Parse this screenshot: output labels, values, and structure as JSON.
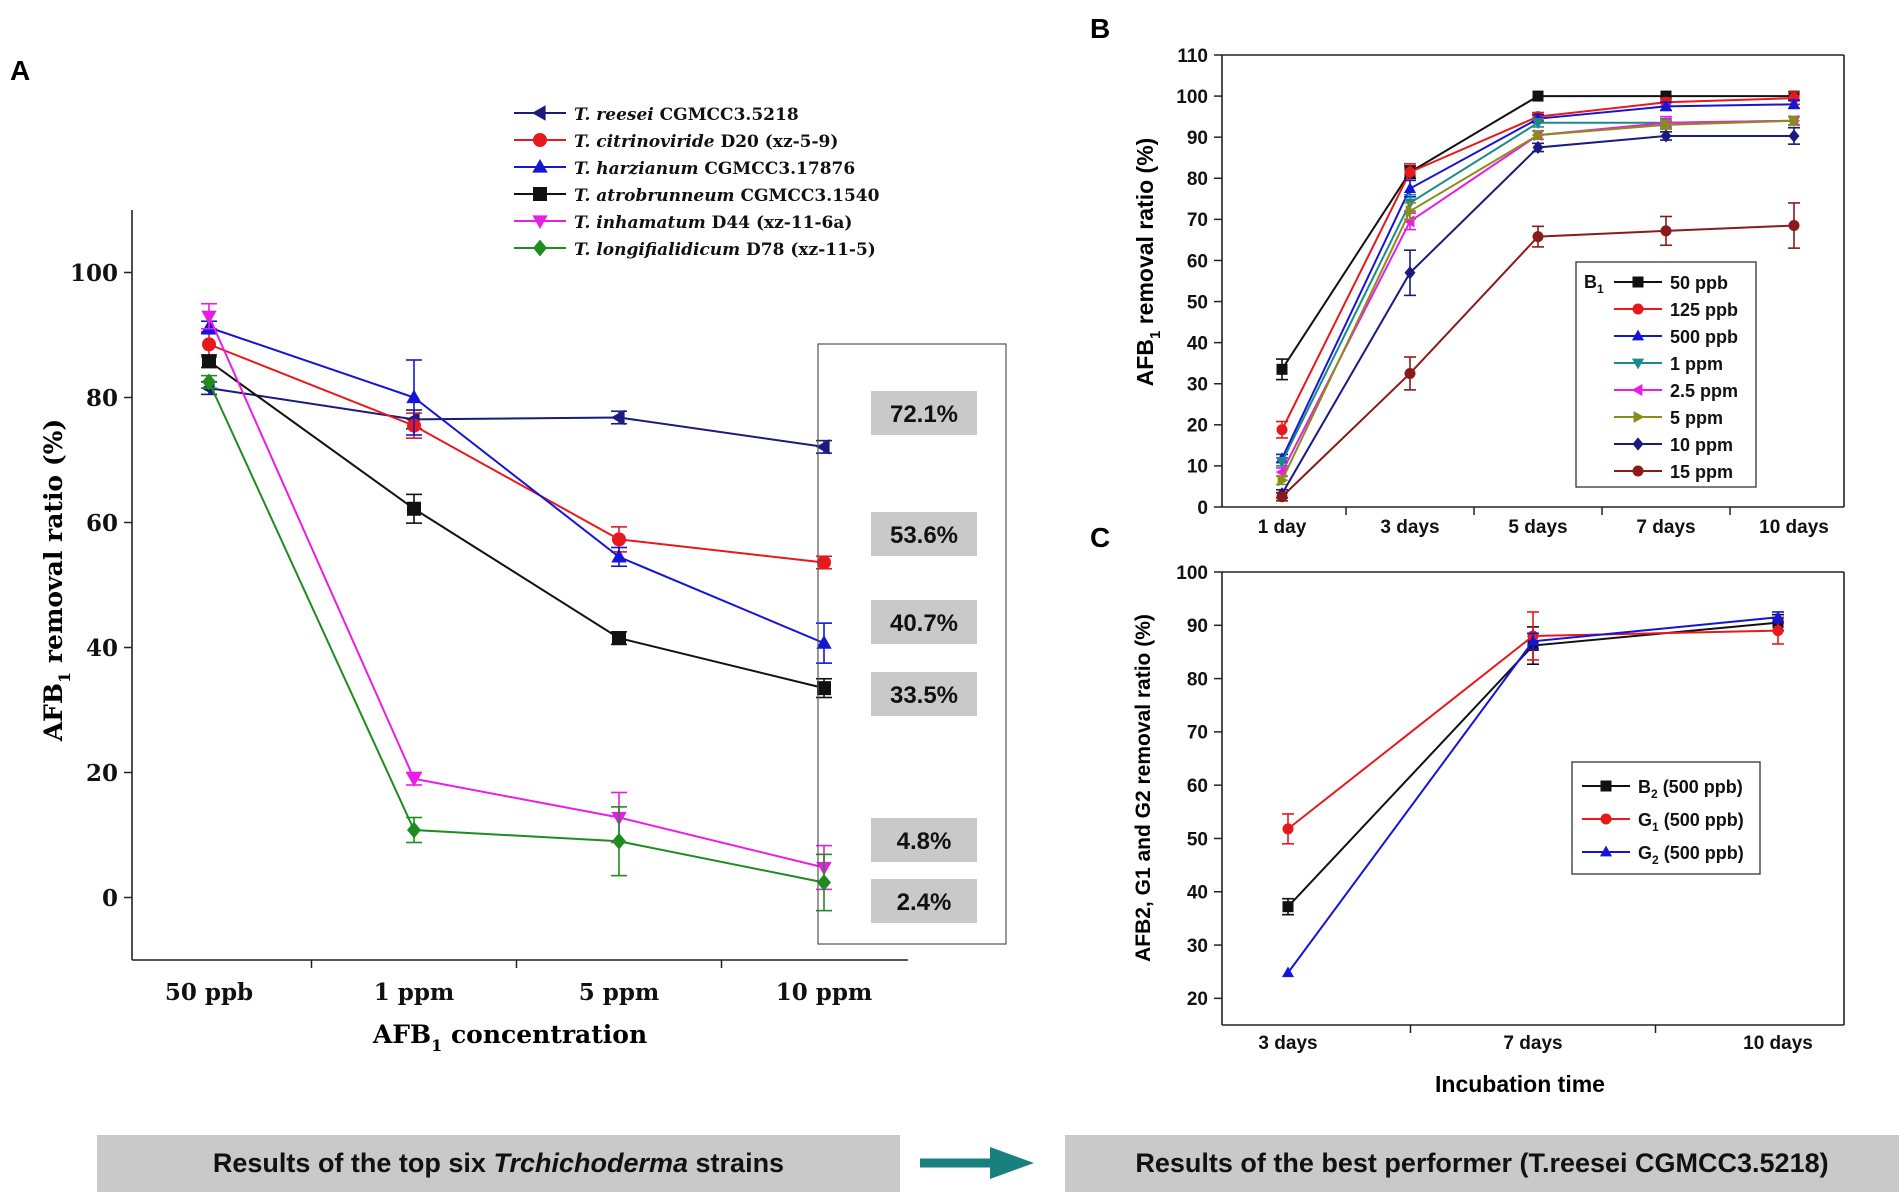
{
  "chart_data": [
    {
      "panel": "A",
      "type": "line",
      "categories": [
        "50 ppb",
        "1 ppm",
        "5 ppm",
        "10 ppm"
      ],
      "xlabel_main": "AFB",
      "xlabel_sub": "1",
      "xlabel_rest": " concentration",
      "ylabel_main": "AFB",
      "ylabel_sub": "1",
      "ylabel_rest": " removal ratio (%)",
      "ylim": [
        -10,
        110
      ],
      "yticks": [
        0,
        20,
        40,
        60,
        80,
        100
      ],
      "series": [
        {
          "italic": "T. reesei",
          "rest": " CGMCC3.5218",
          "color": "#1a1a80",
          "marker": "triangle-left",
          "values": [
            81.5,
            76.5,
            76.8,
            72.1
          ],
          "errors": [
            1.0,
            1.5,
            1.0,
            1.0
          ]
        },
        {
          "italic": "T. citrinoviride",
          "rest": " D20 (xz-5-9)",
          "color": "#e8191c",
          "marker": "circle",
          "values": [
            88.5,
            75.5,
            57.3,
            53.6
          ],
          "errors": [
            2.0,
            2.0,
            2.0,
            1.0
          ]
        },
        {
          "italic": "T. harzianum",
          "rest": " CGMCC3.17876",
          "color": "#1515d6",
          "marker": "triangle-up",
          "values": [
            91.2,
            80.0,
            54.5,
            40.7
          ],
          "errors": [
            1.0,
            6.0,
            1.5,
            3.2
          ]
        },
        {
          "italic": "T. atrobrunneum",
          "rest": " CGMCC3.1540",
          "color": "#111111",
          "marker": "square",
          "values": [
            85.8,
            62.2,
            41.5,
            33.5
          ],
          "errors": [
            1.0,
            2.3,
            1.0,
            1.5
          ]
        },
        {
          "italic": "T. inhamatum",
          "rest": " D44 (xz-11-6a)",
          "color": "#e91ee6",
          "marker": "triangle-down",
          "values": [
            93.0,
            19.0,
            12.8,
            4.8
          ],
          "errors": [
            2.0,
            1.0,
            4.0,
            3.5
          ]
        },
        {
          "italic": "T. longifialidicum",
          "rest": " D78 (xz-11-5)",
          "color": "#1f8c1f",
          "marker": "diamond",
          "values": [
            82.5,
            10.8,
            9.0,
            2.4
          ],
          "errors": [
            1.0,
            2.0,
            5.5,
            4.5
          ]
        }
      ],
      "annotations": [
        "72.1%",
        "53.6%",
        "40.7%",
        "33.5%",
        "4.8%",
        "2.4%"
      ]
    },
    {
      "panel": "B",
      "type": "line",
      "categories": [
        "1 day",
        "3 days",
        "5 days",
        "7 days",
        "10 days"
      ],
      "ylabel_main": "AFB",
      "ylabel_sub": "1",
      "ylabel_rest": " removal ratio (%)",
      "ylim": [
        0,
        110
      ],
      "yticks": [
        0,
        10,
        20,
        30,
        40,
        50,
        60,
        70,
        80,
        90,
        100,
        110
      ],
      "legend_title_main": "B",
      "legend_title_sub": "1",
      "series": [
        {
          "name": "50 ppb",
          "color": "#111111",
          "marker": "square",
          "values": [
            33.5,
            81.5,
            100.0,
            100.0,
            100.0
          ],
          "errors": [
            2.5,
            1.5,
            0.5,
            0.5,
            0.5
          ]
        },
        {
          "name": "125 ppb",
          "color": "#e8191c",
          "marker": "circle",
          "values": [
            18.8,
            81.5,
            95.0,
            98.5,
            99.5
          ],
          "errors": [
            2.0,
            2.0,
            1.0,
            1.0,
            1.5
          ]
        },
        {
          "name": "500 ppb",
          "color": "#1515d6",
          "marker": "triangle-up",
          "values": [
            11.8,
            77.5,
            94.5,
            97.5,
            98.0
          ],
          "errors": [
            1.0,
            2.0,
            1.0,
            1.0,
            1.0
          ]
        },
        {
          "name": "1 ppm",
          "color": "#1a8a8a",
          "marker": "triangle-down",
          "values": [
            11.0,
            74.0,
            93.5,
            93.5,
            94.0
          ],
          "errors": [
            1.0,
            2.0,
            1.0,
            1.0,
            1.0
          ]
        },
        {
          "name": "2.5 ppm",
          "color": "#e91ee6",
          "marker": "triangle-left",
          "values": [
            8.5,
            69.5,
            90.5,
            93.5,
            94.0
          ],
          "errors": [
            1.0,
            2.0,
            1.0,
            1.5,
            1.0
          ]
        },
        {
          "name": "5 ppm",
          "color": "#8c8c1a",
          "marker": "triangle-right",
          "values": [
            6.5,
            72.0,
            90.5,
            93.0,
            94.0
          ],
          "errors": [
            1.0,
            2.0,
            1.0,
            1.0,
            1.0
          ]
        },
        {
          "name": "10 ppm",
          "color": "#1a1a80",
          "marker": "diamond",
          "values": [
            3.2,
            57.0,
            87.5,
            90.3,
            90.3
          ],
          "errors": [
            1.0,
            5.5,
            1.0,
            1.0,
            2.0
          ]
        },
        {
          "name": "15 ppm",
          "color": "#8b1a1a",
          "marker": "circle",
          "values": [
            2.5,
            32.5,
            65.8,
            67.2,
            68.5
          ],
          "errors": [
            1.0,
            4.0,
            2.5,
            3.5,
            5.5
          ]
        }
      ]
    },
    {
      "panel": "C",
      "type": "line",
      "categories": [
        "3 days",
        "7 days",
        "10 days"
      ],
      "xlabel": "Incubation time",
      "ylabel": "AFB2, G1 and G2 removal ratio (%)",
      "ylim": [
        15,
        100
      ],
      "yticks": [
        20,
        30,
        40,
        50,
        60,
        70,
        80,
        90,
        100
      ],
      "series": [
        {
          "main": "B",
          "sub": "2",
          "rest": " (500 ppb)",
          "color": "#111111",
          "marker": "square",
          "values": [
            37.2,
            86.2,
            90.5
          ],
          "errors": [
            1.5,
            3.5,
            1.5
          ]
        },
        {
          "main": "G",
          "sub": "1",
          "rest": " (500 ppb)",
          "color": "#e8191c",
          "marker": "circle",
          "values": [
            51.8,
            88.0,
            89.0
          ],
          "errors": [
            2.8,
            4.5,
            2.5
          ]
        },
        {
          "main": "G",
          "sub": "2",
          "rest": " (500 ppb)",
          "color": "#1515d6",
          "marker": "triangle-up",
          "values": [
            24.8,
            87.0,
            91.5
          ],
          "errors": [
            0.5,
            1.5,
            1.0
          ]
        }
      ]
    }
  ],
  "panel_labels": {
    "a": "A",
    "b": "B",
    "c": "C"
  },
  "banners": {
    "left_prefix": "Results of the top six ",
    "left_italic": "Trchichoderma",
    "left_suffix": " strains",
    "right": "Results of the best performer (T.reesei CGMCC3.5218)"
  },
  "colors": {
    "banner_bg": "#c9c9c9",
    "arrow": "#1a7f7f",
    "annotation_bg": "#c9c9c9"
  }
}
